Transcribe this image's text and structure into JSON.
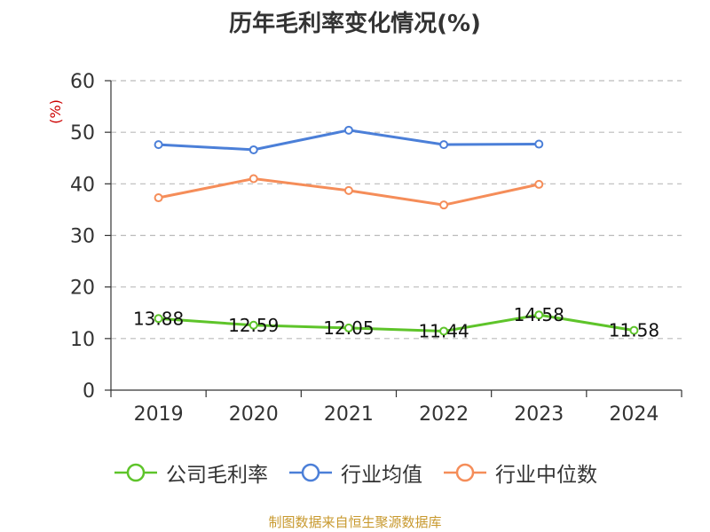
{
  "chart_data": {
    "type": "line",
    "title": "历年毛利率变化情况(%)",
    "ylabel": "(%)",
    "xlabel": "",
    "categories": [
      "2019",
      "2020",
      "2021",
      "2022",
      "2023",
      "2024"
    ],
    "ylim": [
      0,
      60
    ],
    "yticks": [
      0,
      10,
      20,
      30,
      40,
      50,
      60
    ],
    "grid": true,
    "legend_position": "bottom",
    "series": [
      {
        "name": "公司毛利率",
        "color": "#5ec42a",
        "values": [
          13.88,
          12.59,
          12.05,
          11.44,
          14.58,
          11.58
        ],
        "labels": [
          "13.88",
          "12.59",
          "12.05",
          "11.44",
          "14.58",
          "11.58"
        ]
      },
      {
        "name": "行业均值",
        "color": "#4b7fd8",
        "values": [
          47.6,
          46.6,
          50.4,
          47.6,
          47.7,
          null
        ]
      },
      {
        "name": "行业中位数",
        "color": "#f58d59",
        "values": [
          37.3,
          41.0,
          38.7,
          35.9,
          39.9,
          null
        ]
      }
    ]
  },
  "source": "制图数据来自恒生聚源数据库"
}
